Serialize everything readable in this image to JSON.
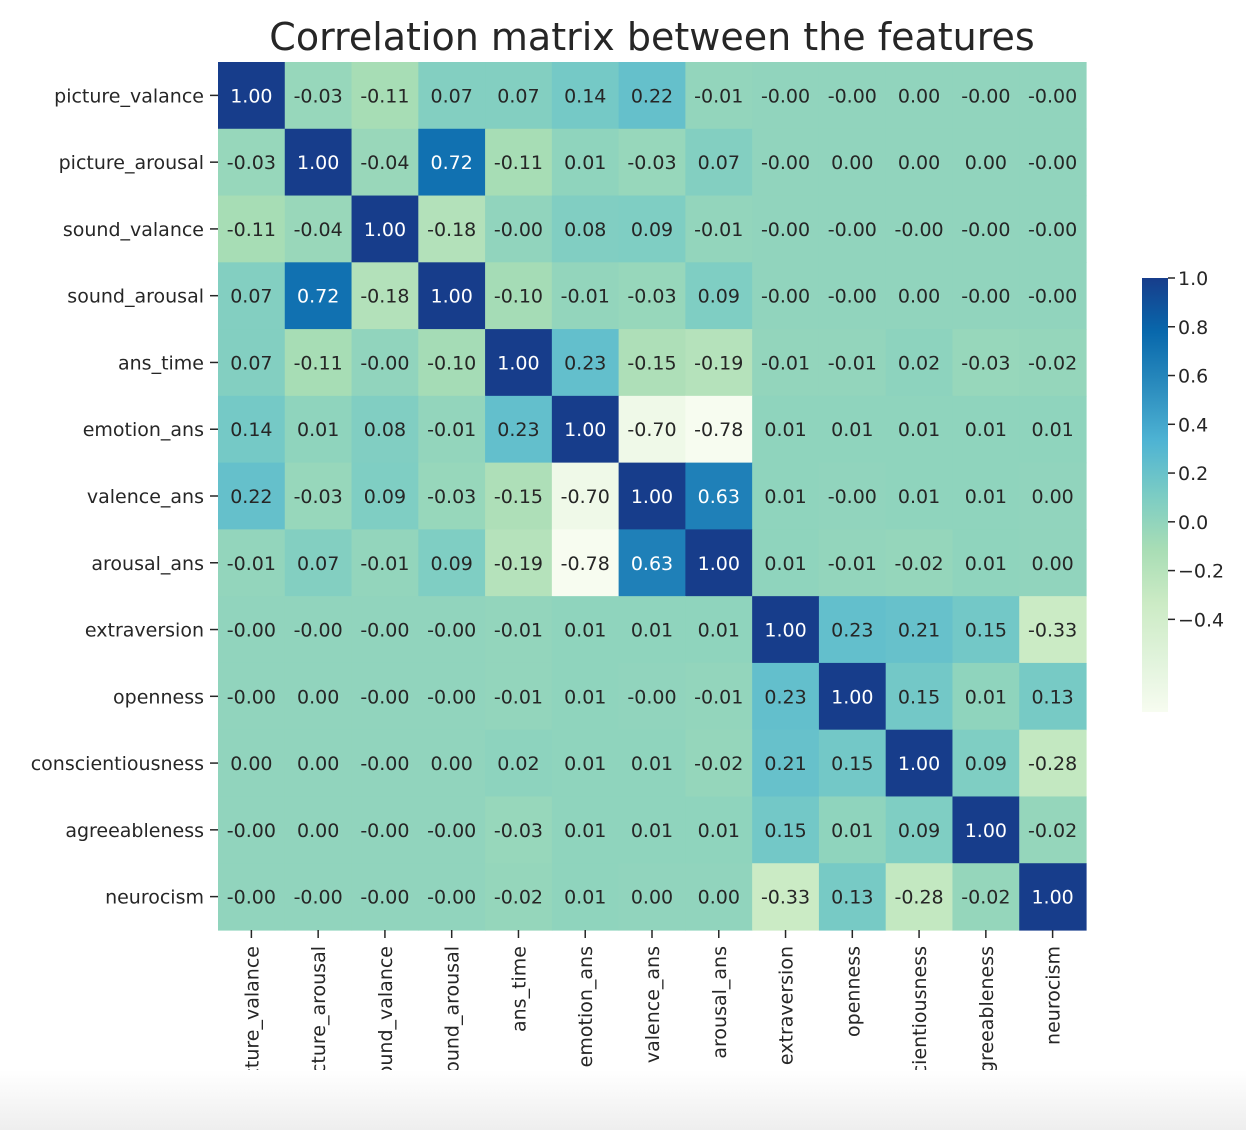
{
  "chart_data": {
    "type": "heatmap",
    "title": "Correlation matrix between the features",
    "labels": [
      "picture_valance",
      "picture_arousal",
      "sound_valance",
      "sound_arousal",
      "ans_time",
      "emotion_ans",
      "valence_ans",
      "arousal_ans",
      "extraversion",
      "openness",
      "conscientiousness",
      "agreeableness",
      "neurocism"
    ],
    "values": [
      [
        "1.00",
        "-0.03",
        "-0.11",
        "0.07",
        "0.07",
        "0.14",
        "0.22",
        "-0.01",
        "-0.00",
        "-0.00",
        "0.00",
        "-0.00",
        "-0.00"
      ],
      [
        "-0.03",
        "1.00",
        "-0.04",
        "0.72",
        "-0.11",
        "0.01",
        "-0.03",
        "0.07",
        "-0.00",
        "0.00",
        "0.00",
        "0.00",
        "-0.00"
      ],
      [
        "-0.11",
        "-0.04",
        "1.00",
        "-0.18",
        "-0.00",
        "0.08",
        "0.09",
        "-0.01",
        "-0.00",
        "-0.00",
        "-0.00",
        "-0.00",
        "-0.00"
      ],
      [
        "0.07",
        "0.72",
        "-0.18",
        "1.00",
        "-0.10",
        "-0.01",
        "-0.03",
        "0.09",
        "-0.00",
        "-0.00",
        "0.00",
        "-0.00",
        "-0.00"
      ],
      [
        "0.07",
        "-0.11",
        "-0.00",
        "-0.10",
        "1.00",
        "0.23",
        "-0.15",
        "-0.19",
        "-0.01",
        "-0.01",
        "0.02",
        "-0.03",
        "-0.02"
      ],
      [
        "0.14",
        "0.01",
        "0.08",
        "-0.01",
        "0.23",
        "1.00",
        "-0.70",
        "-0.78",
        "0.01",
        "0.01",
        "0.01",
        "0.01",
        "0.01"
      ],
      [
        "0.22",
        "-0.03",
        "0.09",
        "-0.03",
        "-0.15",
        "-0.70",
        "1.00",
        "0.63",
        "0.01",
        "-0.00",
        "0.01",
        "0.01",
        "0.00"
      ],
      [
        "-0.01",
        "0.07",
        "-0.01",
        "0.09",
        "-0.19",
        "-0.78",
        "0.63",
        "1.00",
        "0.01",
        "-0.01",
        "-0.02",
        "0.01",
        "0.00"
      ],
      [
        "-0.00",
        "-0.00",
        "-0.00",
        "-0.00",
        "-0.01",
        "0.01",
        "0.01",
        "0.01",
        "1.00",
        "0.23",
        "0.21",
        "0.15",
        "-0.33"
      ],
      [
        "-0.00",
        "0.00",
        "-0.00",
        "-0.00",
        "-0.01",
        "0.01",
        "-0.00",
        "-0.01",
        "0.23",
        "1.00",
        "0.15",
        "0.01",
        "0.13"
      ],
      [
        "0.00",
        "0.00",
        "-0.00",
        "0.00",
        "0.02",
        "0.01",
        "0.01",
        "-0.02",
        "0.21",
        "0.15",
        "1.00",
        "0.09",
        "-0.28"
      ],
      [
        "-0.00",
        "0.00",
        "-0.00",
        "-0.00",
        "-0.03",
        "0.01",
        "0.01",
        "0.01",
        "0.15",
        "0.01",
        "0.09",
        "1.00",
        "-0.02"
      ],
      [
        "-0.00",
        "-0.00",
        "-0.00",
        "-0.00",
        "-0.02",
        "0.01",
        "0.00",
        "0.00",
        "-0.33",
        "0.13",
        "-0.28",
        "-0.02",
        "1.00"
      ]
    ],
    "colorbar": {
      "range": [
        -0.78,
        1.0
      ],
      "ticks": [
        "1.0",
        "0.8",
        "0.6",
        "0.4",
        "0.2",
        "0.0",
        "−0.2",
        "−0.4"
      ],
      "tick_values": [
        1.0,
        0.8,
        0.6,
        0.4,
        0.2,
        0.0,
        -0.2,
        -0.4
      ]
    },
    "colormap": "YlGnBu",
    "colors": {
      "low": "#f7fcf0",
      "high": "#173d8b",
      "dark_text": "#262626",
      "light_text": "#ffffff"
    }
  }
}
